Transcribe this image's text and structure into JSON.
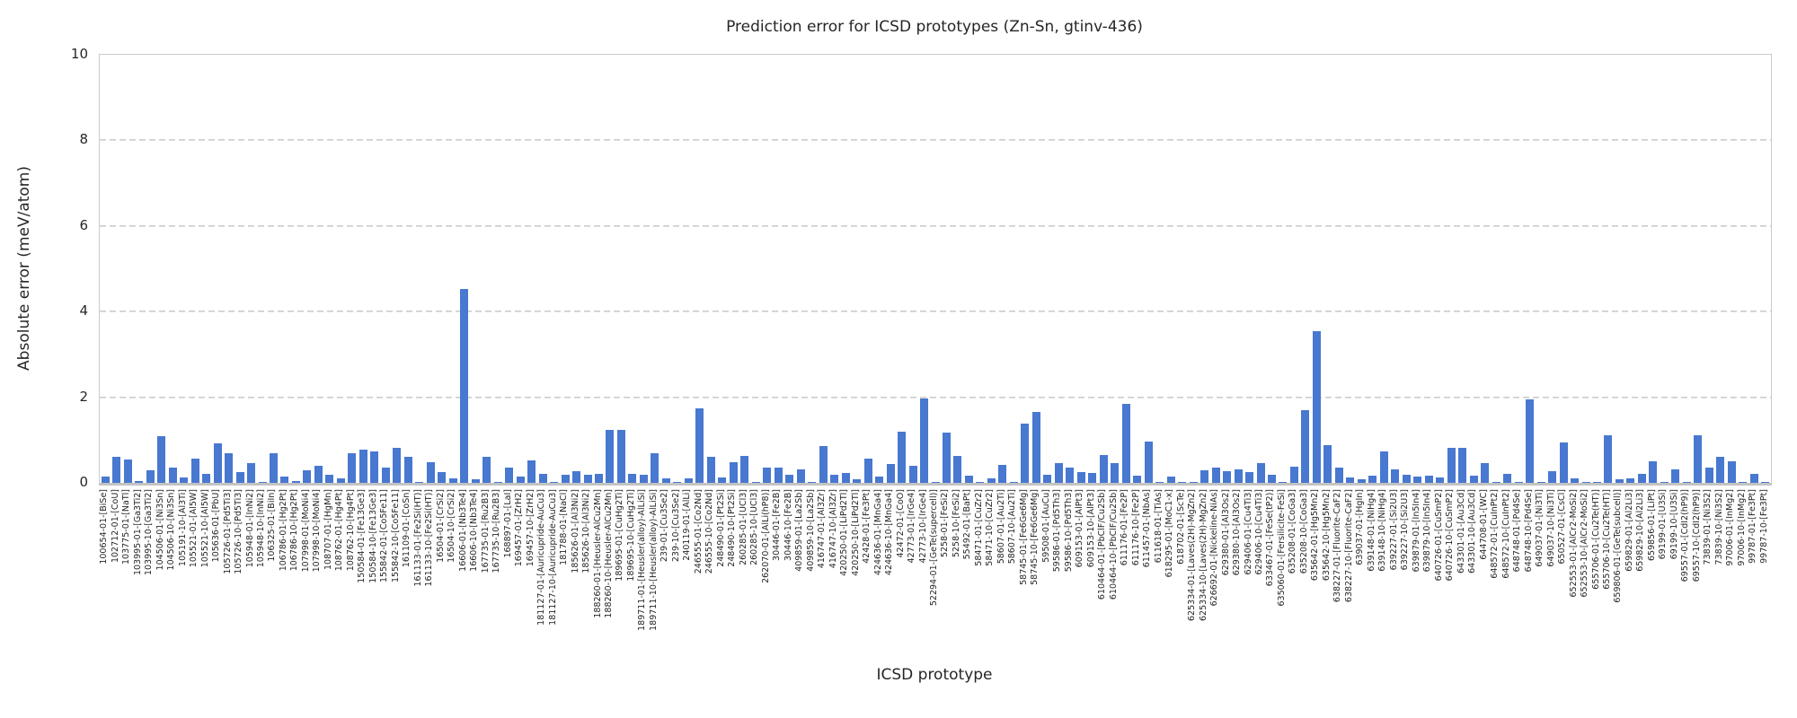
{
  "chart_data": {
    "type": "bar",
    "title": "Prediction error for ICSD prototypes (Zn-Sn, gtinv-436)",
    "xlabel": "ICSD prototype",
    "ylabel": "Absolute error (meV/atom)",
    "ylim": [
      0,
      10
    ],
    "yticks": [
      0,
      2,
      4,
      6,
      8,
      10
    ],
    "grid": "horizontal-dashed",
    "legend": "none",
    "bar_color": "#4878D0",
    "categories": [
      "100654-01-[BiSe]",
      "102712-01-[CoU]",
      "103775-01-[NaTl]",
      "103995-01-[Ga3Ti2]",
      "103995-10-[Ga3Ti2]",
      "104506-01-[Ni3Sn]",
      "104506-10-[Ni3Sn]",
      "105191-10-[Al3Ti]",
      "105521-01-[Al5W]",
      "105521-10-[Al5W]",
      "105636-01-[PbU]",
      "105726-01-[Pd5Ti3]",
      "105726-10-[Pd5Ti3]",
      "105948-01-[InNi2]",
      "105948-10-[InNi2]",
      "106325-01-[BiIn]",
      "106786-01-[Hg2Pt]",
      "106786-10-[Hg2Pt]",
      "107998-01-[MoNi4]",
      "107998-10-[MoNi4]",
      "108707-01-[HgMn]",
      "108762-01-[Hg4Pt]",
      "108762-10-[Hg4Pt]",
      "150584-01-[Fe13Ge3]",
      "150584-10-[Fe13Ge3]",
      "155842-01-[Co5Fe11]",
      "155842-10-[Co5Fe11]",
      "161109-01-[CoSn]",
      "161133-01-[Fe2Si(HT)]",
      "161133-10-[Fe2Si(HT)]",
      "16504-01-[CrSi2]",
      "16504-10-[CrSi2]",
      "16606-01-[Nb3Te4]",
      "16606-10-[Nb3Te4]",
      "167735-01-[Ru2B3]",
      "167735-10-[Ru2B3]",
      "168897-01-[LaI]",
      "169457-01-[ZrH2]",
      "169457-10-[ZrH2]",
      "181127-01-[Auricupride-AuCu3]",
      "181127-10-[Auricupride-AuCu3]",
      "181788-01-[NaCl]",
      "185626-01-[Al3Ni2]",
      "185626-10-[Al3Ni2]",
      "188260-01-[Heusler-AlCu2Mn]",
      "188260-10-[Heusler-AlCu2Mn]",
      "189695-01-[CuHg2Ti]",
      "189695-10-[CuHg2Ti]",
      "189711-01-[Heusler(alloy)-AlLiSi]",
      "189711-10-[Heusler(alloy)-AlLiSi]",
      "239-01-[Cu3Se2]",
      "239-10-[Cu3Se2]",
      "240119-01-[AlLi]",
      "246555-01-[Co2Nd]",
      "246555-10-[Co2Nd]",
      "248490-01-[Pt2Si]",
      "248490-10-[Pt2Si]",
      "260285-01-[UCl3]",
      "260285-10-[UCl3]",
      "262070-01-[AlLi(hP8)]",
      "30446-01-[Fe2B]",
      "30446-10-[Fe2B]",
      "409859-01-[La2Sb]",
      "409859-10-[La2Sb]",
      "416747-01-[Al3Zr]",
      "416747-10-[Al3Zr]",
      "420250-01-[LiPd2Tl]",
      "420250-10-[LiPd2Tl]",
      "42428-01-[Fe3Pt]",
      "424636-01-[MnGa4]",
      "424636-10-[MnGa4]",
      "42472-01-[CoO]",
      "42773-01-[IrGe4]",
      "42773-10-[IrGe4]",
      "52294-01-[GeTe(supercell)]",
      "5258-01-[FeSi2]",
      "5258-10-[FeSi2]",
      "55492-01-[BaPt]",
      "58471-01-[CuZr2]",
      "58471-10-[CuZr2]",
      "58607-01-[Au2Ti]",
      "58607-10-[Au2Ti]",
      "58745-01-[Fe6Ge6Mg]",
      "58745-10-[Fe6Ge6Mg]",
      "59508-01-[AuCu]",
      "59586-01-[Pd5Th3]",
      "59586-10-[Pd5Th3]",
      "609153-01-[AlPt3]",
      "609153-10-[AlPt3]",
      "610464-01-[PbClF/Cu2Sb]",
      "610464-10-[PbClF/Cu2Sb]",
      "611176-01-[Fe2P]",
      "611176-10-[Fe2P]",
      "611457-01-[NbAs]",
      "611618-01-[TiAs]",
      "618295-01-[MoC1-x]",
      "618702-01-[ScTe]",
      "625334-01-[Laves(2H)-MgZn2]",
      "625334-10-[Laves(2H)-MgZn2]",
      "626692-01-[Nickeline-NiAs]",
      "629380-01-[Al3Os2]",
      "629380-10-[Al3Os2]",
      "629406-01-[Cu4Ti3]",
      "629406-10-[Cu4Ti3]",
      "633467-01-[FeSe(tP2)]",
      "635060-01-[Fersilicite-FeSi]",
      "635208-01-[CoGa3]",
      "635208-10-[CoGa3]",
      "635642-01-[Hg5Mn2]",
      "635642-10-[Hg5Mn2]",
      "638227-01-[Fluorite-CaF2]",
      "638227-10-[Fluorite-CaF2]",
      "639037-01-[HgIn]",
      "639148-01-[NiHg4]",
      "639148-10-[NiHg4]",
      "639227-01-[Si2U3]",
      "639227-10-[Si2U3]",
      "639879-01-[In5In4]",
      "639879-10-[In5In4]",
      "640726-01-[CuSmP2]",
      "640726-10-[CuSmP2]",
      "643301-01-[Au3Cd]",
      "643301-10-[Au3Cd]",
      "644708-01-[WC]",
      "648572-01-[CuInPt2]",
      "648572-10-[CuInPt2]",
      "648748-01-[Pd4Se]",
      "648748-10-[Pd4Se]",
      "649037-01-[Ni3Ti]",
      "649037-10-[Ni3Ti]",
      "650527-01-[CsCl]",
      "652553-01-[AlCr2-MoSi2]",
      "652553-10-[AlCr2-MoSi2]",
      "655706-01-[Cu2Te(HT)]",
      "655706-10-[Cu2Te(HT)]",
      "659806-01-[GeTe(subcell)]",
      "659829-01-[Al2Li3]",
      "659829-10-[Al2Li3]",
      "659856-01-[LiPt]",
      "69199-01-[U3Si]",
      "69199-10-[U3Si]",
      "69557-01-[CdI2(hP9)]",
      "69557-10-[CdI2(hP9)]",
      "73839-01-[Ni3S2]",
      "73839-10-[Ni3S2]",
      "97006-01-[InMg2]",
      "97006-10-[InMg2]",
      "99787-01-[Fe3Pt]",
      "99787-10-[Fe3Pt]"
    ],
    "values": [
      0.15,
      0.6,
      0.55,
      0.05,
      0.3,
      1.1,
      0.35,
      0.12,
      0.57,
      0.2,
      0.93,
      0.7,
      0.25,
      0.47,
      0.03,
      0.7,
      0.15,
      0.05,
      0.3,
      0.4,
      0.18,
      0.1,
      0.7,
      0.77,
      0.74,
      0.35,
      0.82,
      0.61,
      0.02,
      0.49,
      0.26,
      0.11,
      4.52,
      0.09,
      0.61,
      0.03,
      0.35,
      0.14,
      0.52,
      0.22,
      0.02,
      0.19,
      0.28,
      0.18,
      0.22,
      1.24,
      1.24,
      0.22,
      0.19,
      0.7,
      0.11,
      0.03,
      0.1,
      1.74,
      0.6,
      0.13,
      0.49,
      0.62,
      0.02,
      0.35,
      0.36,
      0.19,
      0.32,
      0.02,
      0.85,
      0.18,
      0.24,
      0.09,
      0.56,
      0.14,
      0.44,
      1.2,
      0.4,
      1.98,
      0.03,
      1.18,
      0.62,
      0.16,
      0.02,
      0.1,
      0.42,
      0.02,
      1.39,
      1.65,
      0.19,
      0.46,
      0.35,
      0.25,
      0.24,
      0.64,
      0.47,
      1.85,
      0.17,
      0.96,
      0.02,
      0.15,
      0.02,
      0.02,
      0.3,
      0.35,
      0.28,
      0.32,
      0.26,
      0.47,
      0.19,
      0.02,
      0.37,
      1.69,
      3.54,
      0.89,
      0.35,
      0.13,
      0.09,
      0.16,
      0.74,
      0.32,
      0.18,
      0.14,
      0.16,
      0.13,
      0.82,
      0.81,
      0.16,
      0.47,
      0.02,
      0.22,
      0.02,
      1.95,
      0.02,
      0.28,
      0.94,
      0.1,
      0.02,
      0.02,
      1.11,
      0.09,
      0.1,
      0.21,
      0.51,
      0.02,
      0.32,
      0.02,
      1.11,
      0.35,
      0.61,
      0.51,
      0.02,
      0.21,
      0.02
    ],
    "axis_color": "#cccccc",
    "text_color": "#262626",
    "background": "#ffffff"
  }
}
